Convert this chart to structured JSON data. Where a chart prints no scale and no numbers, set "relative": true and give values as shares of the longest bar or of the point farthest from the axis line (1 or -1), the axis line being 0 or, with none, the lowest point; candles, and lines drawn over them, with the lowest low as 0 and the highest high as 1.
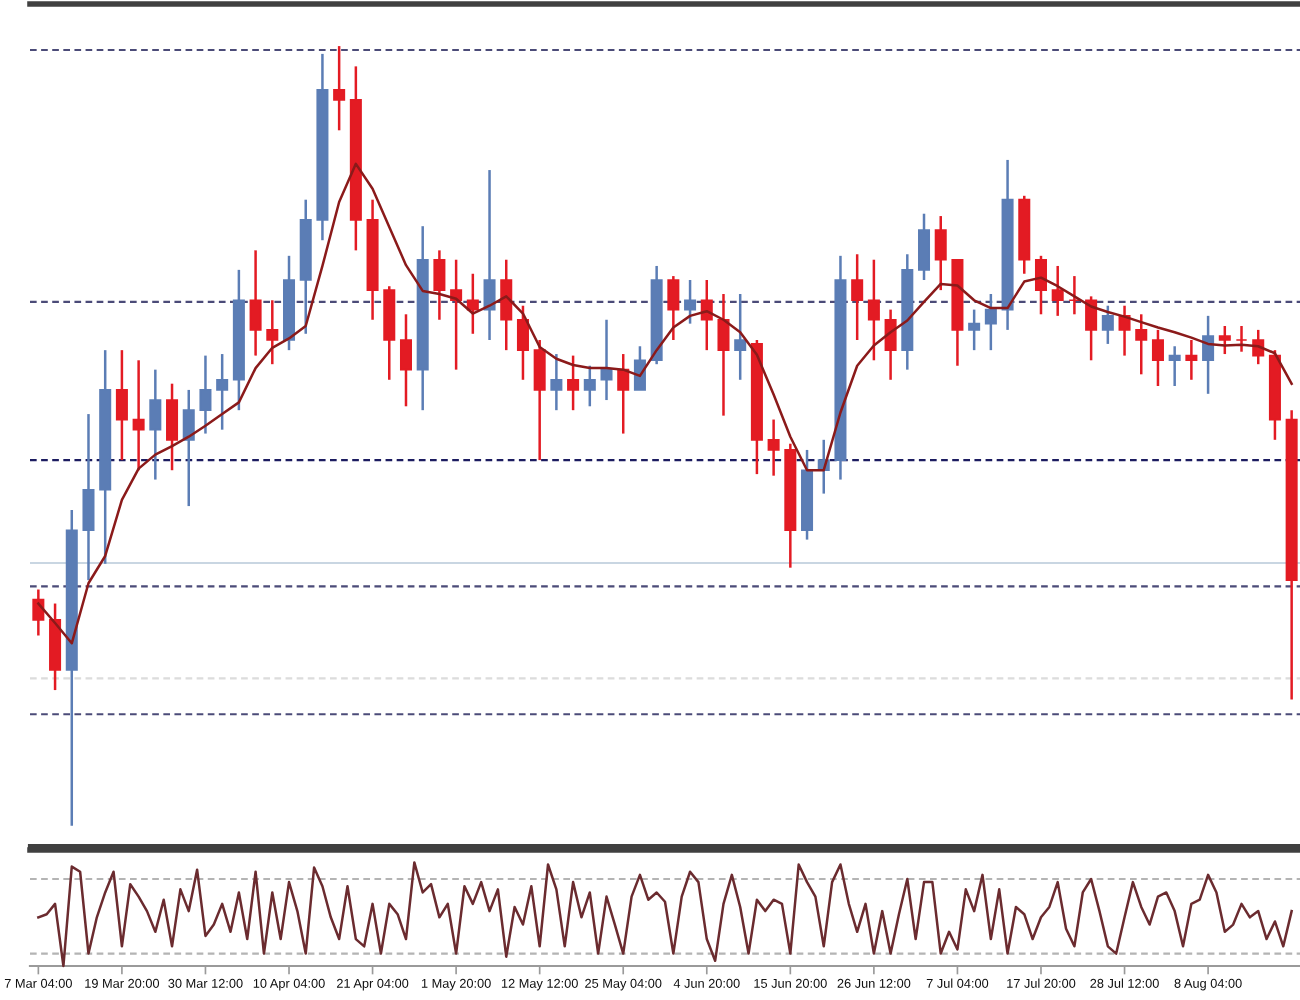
{
  "chart_data": [
    {
      "type": "candlestick",
      "relative": true,
      "tick_labels": false,
      "categories": [
        null,
        null,
        null,
        null,
        null,
        null,
        null,
        null,
        null,
        null,
        null,
        null,
        null,
        null,
        null,
        null,
        null,
        null,
        null,
        null,
        null,
        null,
        null,
        null,
        null,
        null,
        null,
        null,
        null,
        null,
        null,
        null,
        null,
        null,
        null,
        null,
        null,
        null,
        null,
        null,
        null,
        null,
        null,
        null,
        null,
        null,
        null,
        null,
        null,
        null,
        null,
        null,
        null,
        null,
        null,
        null,
        null,
        null,
        null,
        null,
        null,
        null,
        null,
        null,
        null,
        null,
        null,
        null,
        null,
        null,
        null,
        null,
        null,
        null,
        null,
        null
      ],
      "ohlc": [
        [
          0.29,
          0.303,
          0.244,
          0.264
        ],
        [
          0.264,
          0.285,
          0.174,
          0.2
        ],
        [
          0.2,
          0.405,
          0,
          0.379
        ],
        [
          0.379,
          0.528,
          0.315,
          0.431
        ],
        [
          0.431,
          0.61,
          0.336,
          0.559
        ],
        [
          0.559,
          0.61,
          0.469,
          0.521
        ],
        [
          0.521,
          0.597,
          0.456,
          0.508
        ],
        [
          0.508,
          0.585,
          0.444,
          0.546
        ],
        [
          0.546,
          0.567,
          0.456,
          0.495
        ],
        [
          0.495,
          0.559,
          0.41,
          0.533
        ],
        [
          0.533,
          0.603,
          0.503,
          0.559
        ],
        [
          0.559,
          0.605,
          0.508,
          0.572
        ],
        [
          0.572,
          0.713,
          0.533,
          0.674
        ],
        [
          0.674,
          0.738,
          0.603,
          0.636
        ],
        [
          0.636,
          0.674,
          0.592,
          0.623
        ],
        [
          0.623,
          0.731,
          0.61,
          0.7
        ],
        [
          0.7,
          0.803,
          0.631,
          0.777
        ],
        [
          0.777,
          0.99,
          0.751,
          0.944
        ],
        [
          0.944,
          1,
          0.892,
          0.931
        ],
        [
          0.931,
          0.974,
          0.738,
          0.777
        ],
        [
          0.777,
          0.803,
          0.649,
          0.687
        ],
        [
          0.687,
          0.692,
          0.572,
          0.623
        ],
        [
          0.623,
          0.656,
          0.538,
          0.585
        ],
        [
          0.585,
          0.769,
          0.533,
          0.726
        ],
        [
          0.726,
          0.738,
          0.649,
          0.687
        ],
        [
          0.687,
          0.726,
          0.585,
          0.674
        ],
        [
          0.674,
          0.708,
          0.631,
          0.662
        ],
        [
          0.662,
          0.841,
          0.623,
          0.7
        ],
        [
          0.7,
          0.726,
          0.61,
          0.649
        ],
        [
          0.649,
          0.667,
          0.572,
          0.61
        ],
        [
          0.61,
          0.623,
          0.469,
          0.559
        ],
        [
          0.559,
          0.605,
          0.533,
          0.572
        ],
        [
          0.572,
          0.603,
          0.533,
          0.559
        ],
        [
          0.559,
          0.59,
          0.538,
          0.572
        ],
        [
          0.572,
          0.649,
          0.546,
          0.585
        ],
        [
          0.585,
          0.605,
          0.503,
          0.559
        ],
        [
          0.559,
          0.615,
          0.559,
          0.597
        ],
        [
          0.597,
          0.718,
          0.592,
          0.7
        ],
        [
          0.7,
          0.705,
          0.623,
          0.662
        ],
        [
          0.662,
          0.7,
          0.644,
          0.674
        ],
        [
          0.674,
          0.7,
          0.61,
          0.649
        ],
        [
          0.649,
          0.682,
          0.526,
          0.61
        ],
        [
          0.61,
          0.682,
          0.572,
          0.623
        ],
        [
          0.618,
          0.623,
          0.451,
          0.495
        ],
        [
          0.495,
          0.521,
          0.449,
          0.482
        ],
        [
          0.482,
          0.49,
          0.331,
          0.379
        ],
        [
          0.379,
          0.482,
          0.367,
          0.456
        ],
        [
          0.456,
          0.495,
          0.426,
          0.469
        ],
        [
          0.469,
          0.731,
          0.444,
          0.7
        ],
        [
          0.7,
          0.733,
          0.623,
          0.674
        ],
        [
          0.674,
          0.726,
          0.597,
          0.649
        ],
        [
          0.649,
          0.662,
          0.572,
          0.61
        ],
        [
          0.61,
          0.733,
          0.585,
          0.713
        ],
        [
          0.713,
          0.785,
          0.7,
          0.764
        ],
        [
          0.764,
          0.782,
          0.687,
          0.726
        ],
        [
          0.726,
          0.726,
          0.59,
          0.636
        ],
        [
          0.636,
          0.662,
          0.61,
          0.644
        ],
        [
          0.644,
          0.682,
          0.61,
          0.662
        ],
        [
          0.662,
          0.854,
          0.636,
          0.803
        ],
        [
          0.803,
          0.808,
          0.708,
          0.726
        ],
        [
          0.726,
          0.731,
          0.656,
          0.687
        ],
        [
          0.687,
          0.718,
          0.654,
          0.674
        ],
        [
          0.674,
          0.705,
          0.656,
          0.674
        ],
        [
          0.674,
          0.679,
          0.597,
          0.636
        ],
        [
          0.636,
          0.667,
          0.618,
          0.654
        ],
        [
          0.654,
          0.667,
          0.603,
          0.636
        ],
        [
          0.636,
          0.656,
          0.579,
          0.623
        ],
        [
          0.623,
          0.636,
          0.564,
          0.597
        ],
        [
          0.597,
          0.615,
          0.564,
          0.603
        ],
        [
          0.603,
          0.623,
          0.572,
          0.597
        ],
        [
          0.597,
          0.654,
          0.554,
          0.628
        ],
        [
          0.628,
          0.641,
          0.605,
          0.623
        ],
        [
          0.623,
          0.641,
          0.608,
          0.623
        ],
        [
          0.623,
          0.636,
          0.592,
          0.603
        ],
        [
          0.603,
          0.61,
          0.495,
          0.521
        ],
        [
          0.521,
          0.533,
          0.162,
          0.315
        ]
      ],
      "colors": [
        "#e31b23",
        "#e31b23",
        "#5b7db5",
        "#5b7db5",
        "#5b7db5",
        "#e31b23",
        "#e31b23",
        "#5b7db5",
        "#e31b23",
        "#5b7db5",
        "#5b7db5",
        "#5b7db5",
        "#5b7db5",
        "#e31b23",
        "#e31b23",
        "#5b7db5",
        "#5b7db5",
        "#5b7db5",
        "#e31b23",
        "#e31b23",
        "#e31b23",
        "#e31b23",
        "#e31b23",
        "#5b7db5",
        "#e31b23",
        "#e31b23",
        "#e31b23",
        "#5b7db5",
        "#e31b23",
        "#e31b23",
        "#e31b23",
        "#5b7db5",
        "#e31b23",
        "#5b7db5",
        "#5b7db5",
        "#e31b23",
        "#5b7db5",
        "#5b7db5",
        "#e31b23",
        "#5b7db5",
        "#e31b23",
        "#e31b23",
        "#5b7db5",
        "#e31b23",
        "#e31b23",
        "#e31b23",
        "#5b7db5",
        "#5b7db5",
        "#5b7db5",
        "#e31b23",
        "#e31b23",
        "#e31b23",
        "#5b7db5",
        "#5b7db5",
        "#e31b23",
        "#e31b23",
        "#5b7db5",
        "#5b7db5",
        "#5b7db5",
        "#e31b23",
        "#e31b23",
        "#e31b23",
        "#e31b23",
        "#e31b23",
        "#5b7db5",
        "#e31b23",
        "#e31b23",
        "#e31b23",
        "#5b7db5",
        "#e31b23",
        "#5b7db5",
        "#e31b23",
        "#e31b23",
        "#e31b23",
        "#e31b23",
        "#e31b23"
      ],
      "series": [
        {
          "type": "line",
          "color": "#8b1a1a",
          "values": [
            0.285,
            0.26,
            0.234,
            0.311,
            0.346,
            0.418,
            0.458,
            0.476,
            0.487,
            0.499,
            0.513,
            0.528,
            0.543,
            0.587,
            0.613,
            0.625,
            0.641,
            0.718,
            0.8,
            0.849,
            0.817,
            0.768,
            0.719,
            0.686,
            0.682,
            0.676,
            0.657,
            0.667,
            0.679,
            0.657,
            0.614,
            0.599,
            0.591,
            0.587,
            0.587,
            0.585,
            0.577,
            0.61,
            0.639,
            0.654,
            0.66,
            0.649,
            0.633,
            0.604,
            0.553,
            0.499,
            0.456,
            0.456,
            0.53,
            0.59,
            0.616,
            0.633,
            0.648,
            0.672,
            0.695,
            0.693,
            0.674,
            0.664,
            0.664,
            0.698,
            0.703,
            0.692,
            0.679,
            0.666,
            0.659,
            0.653,
            0.646,
            0.639,
            0.633,
            0.626,
            0.618,
            0.616,
            0.617,
            0.615,
            0.606,
            0.567
          ]
        }
      ],
      "ref_lines": [
        {
          "axis": "y",
          "value": 0.995,
          "color": "#4b4b78",
          "line_style": "dashed"
        },
        {
          "axis": "y",
          "value": 0.672,
          "color": "#4b4b78",
          "line_style": "dashed"
        },
        {
          "axis": "y",
          "value": 0.469,
          "color": "#1c1c60",
          "line_style": "dashed"
        },
        {
          "axis": "y",
          "value": 0.337,
          "color": "#c9d6e2",
          "line_style": "solid"
        },
        {
          "axis": "y",
          "value": 0.307,
          "color": "#4b4b78",
          "line_style": "dashed"
        },
        {
          "axis": "y",
          "value": 0.189,
          "color": "#dcdcdc",
          "line_style": "dashed"
        },
        {
          "axis": "y",
          "value": 0.143,
          "color": "#4b4b78",
          "line_style": "dashed"
        }
      ]
    },
    {
      "type": "line",
      "relative": true,
      "categories": [
        "7 Mar 04:00",
        null,
        null,
        null,
        null,
        null,
        null,
        null,
        null,
        null,
        "19 Mar 20:00",
        null,
        null,
        null,
        null,
        null,
        null,
        null,
        null,
        null,
        "30 Mar 12:00",
        null,
        null,
        null,
        null,
        null,
        null,
        null,
        null,
        null,
        "10 Apr 04:00",
        null,
        null,
        null,
        null,
        null,
        null,
        null,
        null,
        null,
        "21 Apr 04:00",
        null,
        null,
        null,
        null,
        null,
        null,
        null,
        null,
        null,
        "1 May 20:00",
        null,
        null,
        null,
        null,
        null,
        null,
        null,
        null,
        null,
        "12 May 12:00",
        null,
        null,
        null,
        null,
        null,
        null,
        null,
        null,
        null,
        "25 May 04:00",
        null,
        null,
        null,
        null,
        null,
        null,
        null,
        null,
        null,
        "4 Jun 20:00",
        null,
        null,
        null,
        null,
        null,
        null,
        null,
        null,
        null,
        "15 Jun 20:00",
        null,
        null,
        null,
        null,
        null,
        null,
        null,
        null,
        null,
        "26 Jun 12:00",
        null,
        null,
        null,
        null,
        null,
        null,
        null,
        null,
        null,
        "7 Jul 04:00",
        null,
        null,
        null,
        null,
        null,
        null,
        null,
        null,
        null,
        "17 Jul 20:00",
        null,
        null,
        null,
        null,
        null,
        null,
        null,
        null,
        null,
        "28 Jul 12:00",
        null,
        null,
        null,
        null,
        null,
        null,
        null,
        null,
        null,
        "8 Aug 04:00",
        null,
        null,
        null,
        null,
        null,
        null,
        null,
        null,
        null,
        null
      ],
      "series": [
        {
          "color": "#6b2b2f",
          "values": [
            0.47,
            0.5,
            0.6,
            0.0,
            0.96,
            0.91,
            0.12,
            0.47,
            0.71,
            0.91,
            0.19,
            0.79,
            0.67,
            0.53,
            0.33,
            0.64,
            0.19,
            0.74,
            0.53,
            0.93,
            0.29,
            0.4,
            0.6,
            0.33,
            0.71,
            0.26,
            0.91,
            0.12,
            0.71,
            0.26,
            0.81,
            0.53,
            0.12,
            0.95,
            0.77,
            0.47,
            0.26,
            0.77,
            0.26,
            0.19,
            0.6,
            0.12,
            0.6,
            0.5,
            0.26,
            1.0,
            0.71,
            0.79,
            0.47,
            0.6,
            0.12,
            0.77,
            0.6,
            0.81,
            0.53,
            0.74,
            0.09,
            0.57,
            0.4,
            0.77,
            0.19,
            0.98,
            0.74,
            0.19,
            0.81,
            0.47,
            0.71,
            0.12,
            0.67,
            0.4,
            0.12,
            0.67,
            0.88,
            0.64,
            0.71,
            0.62,
            0.12,
            0.67,
            0.91,
            0.81,
            0.26,
            0.05,
            0.6,
            0.88,
            0.57,
            0.12,
            0.64,
            0.53,
            0.64,
            0.6,
            0.12,
            0.98,
            0.81,
            0.67,
            0.19,
            0.81,
            0.98,
            0.6,
            0.33,
            0.6,
            0.12,
            0.53,
            0.12,
            0.5,
            0.84,
            0.26,
            0.81,
            0.81,
            0.12,
            0.33,
            0.16,
            0.74,
            0.53,
            0.88,
            0.26,
            0.74,
            0.12,
            0.57,
            0.5,
            0.26,
            0.47,
            0.57,
            0.81,
            0.36,
            0.19,
            0.71,
            0.84,
            0.53,
            0.19,
            0.12,
            0.47,
            0.81,
            0.57,
            0.4,
            0.67,
            0.71,
            0.53,
            0.19,
            0.6,
            0.64,
            0.88,
            0.71,
            0.33,
            0.4,
            0.6,
            0.47,
            0.53,
            0.26,
            0.43,
            0.19,
            0.53
          ]
        }
      ],
      "ref_lines": [
        {
          "axis": "y",
          "value": 0.84,
          "color": "#b4b4b4",
          "line_style": "dashed"
        },
        {
          "axis": "y",
          "value": 0.12,
          "color": "#b4b4b4",
          "line_style": "dashed"
        }
      ]
    }
  ]
}
